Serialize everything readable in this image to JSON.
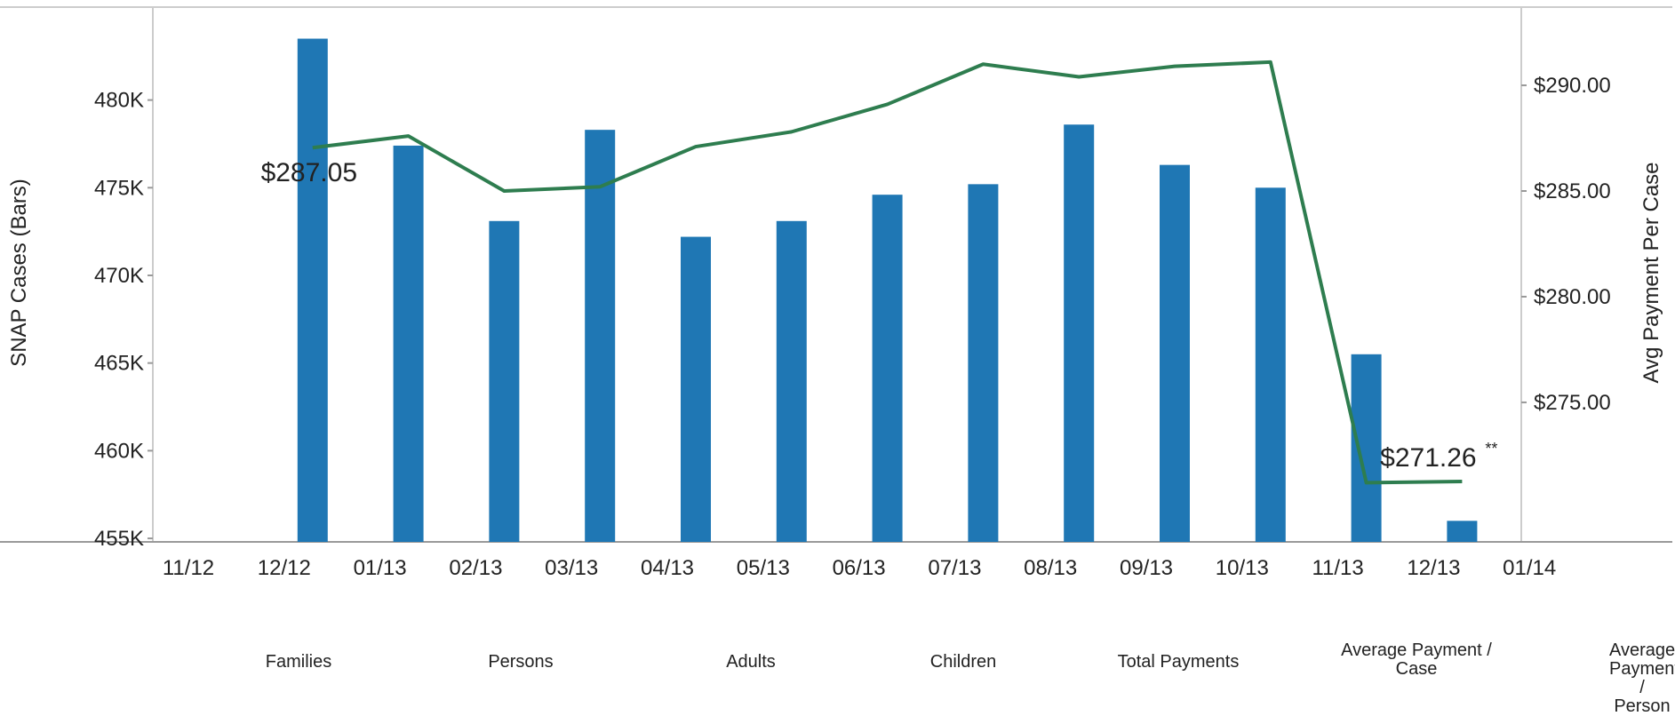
{
  "chart_data": {
    "type": "bar+line",
    "categories": [
      "11/12",
      "12/12",
      "01/13",
      "02/13",
      "03/13",
      "04/13",
      "05/13",
      "06/13",
      "07/13",
      "08/13",
      "09/13",
      "10/13",
      "11/13",
      "12/13",
      "01/14"
    ],
    "bar_series": {
      "axis": "left",
      "color": "#1f77b4",
      "values": [
        null,
        483500,
        477400,
        473100,
        478300,
        472200,
        473100,
        474600,
        475200,
        478600,
        476300,
        475000,
        465500,
        456000,
        null
      ]
    },
    "line_series": {
      "axis": "right",
      "color": "#2e7d4f",
      "values": [
        null,
        287.05,
        287.6,
        285.0,
        285.2,
        287.1,
        287.8,
        289.1,
        291.0,
        290.4,
        290.9,
        291.1,
        271.2,
        271.26,
        null
      ]
    },
    "y_left": {
      "label": "SNAP Cases (Bars)",
      "ticks": [
        455000,
        460000,
        465000,
        470000,
        475000,
        480000
      ],
      "tick_labels": [
        "455K",
        "460K",
        "465K",
        "470K",
        "475K",
        "480K"
      ],
      "range": [
        454800,
        485300
      ]
    },
    "y_right": {
      "label": "Avg Payment Per Case",
      "ticks": [
        275,
        280,
        285,
        290
      ],
      "tick_labels": [
        "$275.00",
        "$280.00",
        "$285.00",
        "$290.00"
      ],
      "range": [
        268.4,
        293.7
      ]
    },
    "annotations": [
      {
        "text": "$287.05",
        "category": "12/12"
      },
      {
        "text": "$271.26",
        "category": "12/13",
        "superscript": "**"
      }
    ]
  },
  "bottom_tabs": [
    "Families",
    "Persons",
    "Adults",
    "Children",
    "Total Payments",
    "Average Payment /\nCase",
    "Average Payment /\nPerson"
  ]
}
